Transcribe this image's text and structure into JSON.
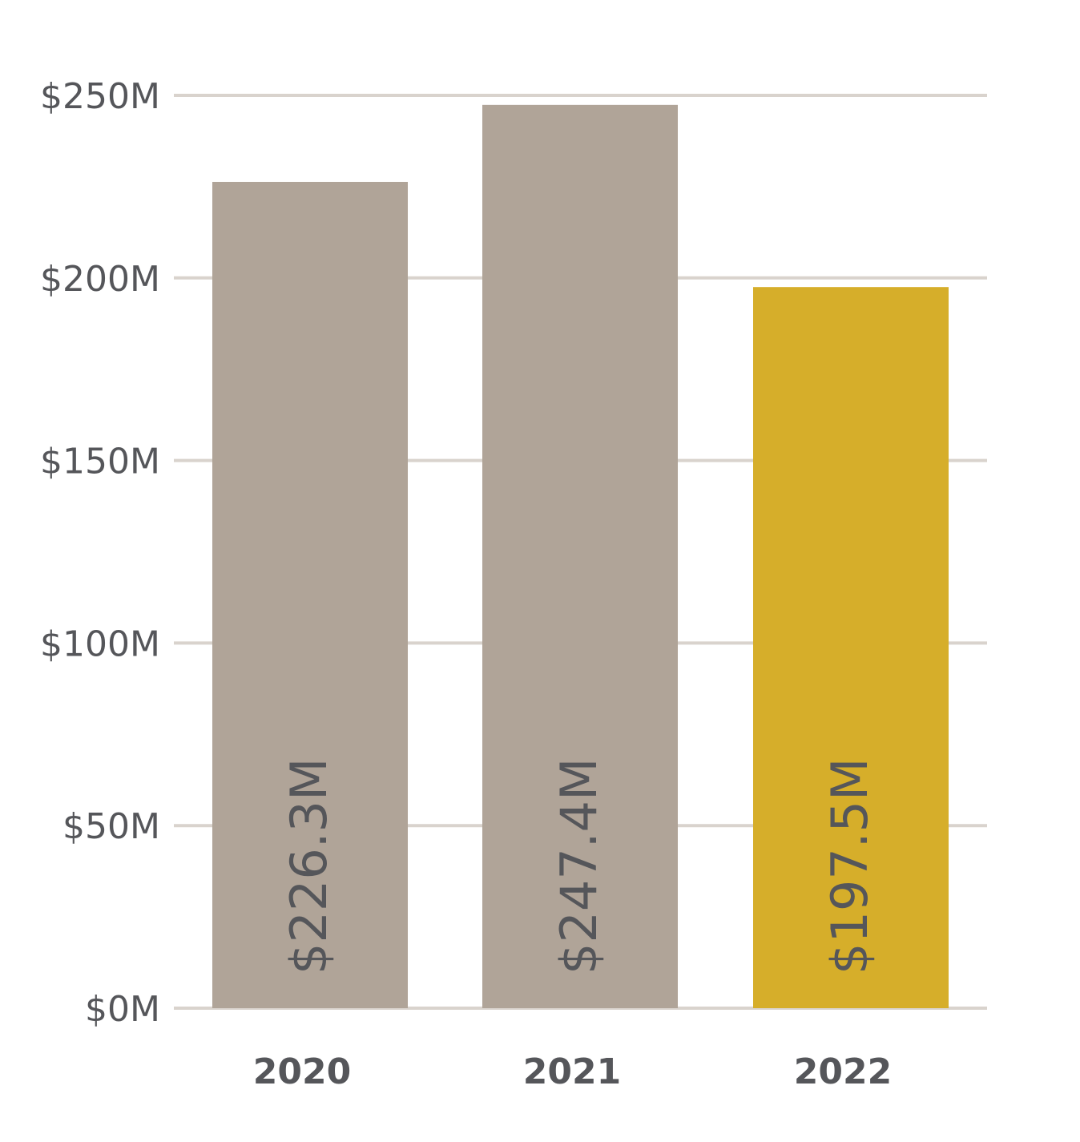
{
  "chart_data": {
    "type": "bar",
    "categories": [
      "2020",
      "2021",
      "2022"
    ],
    "values": [
      226.3,
      247.4,
      197.5
    ],
    "value_labels": [
      "$226.3M",
      "$247.4M",
      "$197.5M"
    ],
    "bar_colors": [
      "#b0a498",
      "#b0a498",
      "#d6ae2a"
    ],
    "ylim": [
      0,
      250
    ],
    "yticks": [
      0,
      50,
      100,
      150,
      200,
      250
    ],
    "ytick_labels": [
      "$0M",
      "$50M",
      "$100M",
      "$150M",
      "$200M",
      "$250M"
    ],
    "grid": true,
    "gridline_color": "#d9d3cd",
    "text_color": "#55565a"
  }
}
